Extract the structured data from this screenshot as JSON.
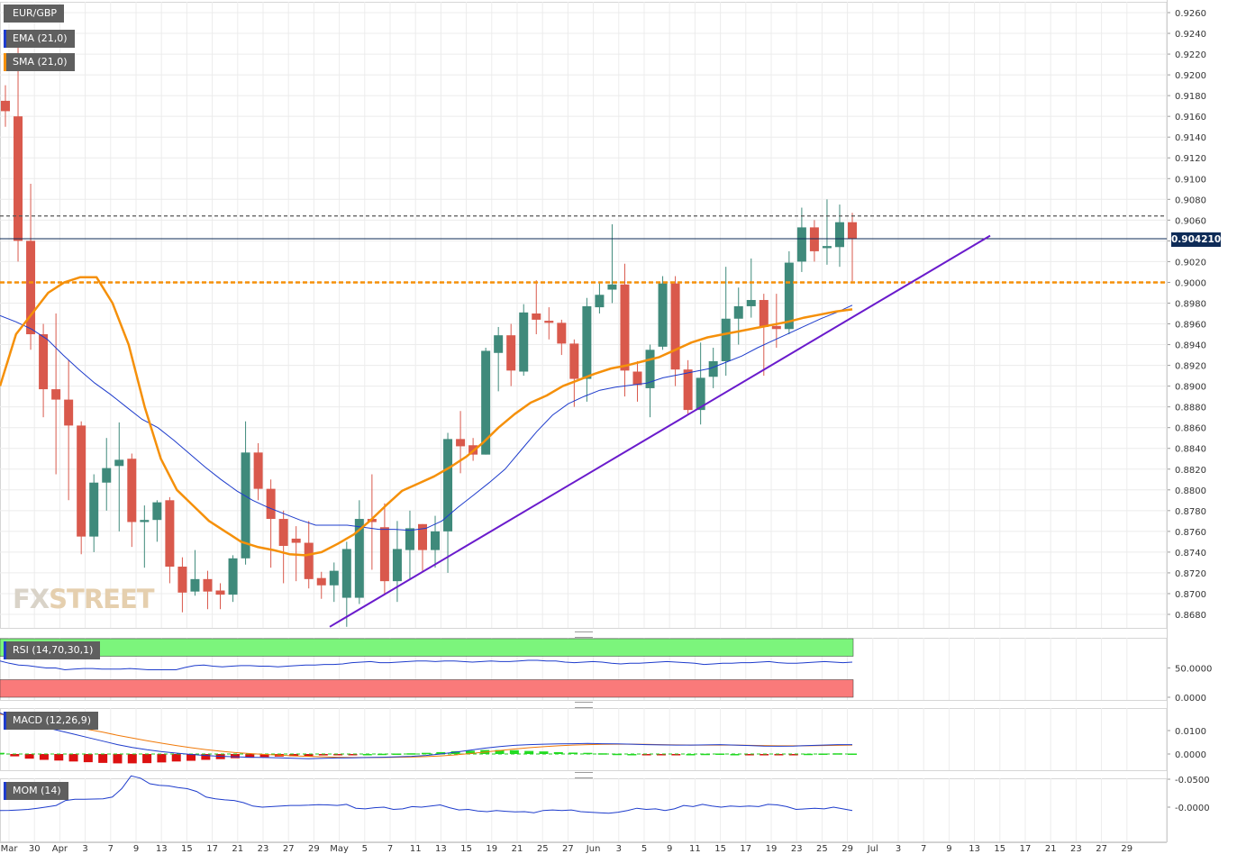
{
  "symbol": "EUR/GBP",
  "indicators": {
    "ema_label": "EMA (21,0)",
    "sma_label": "SMA (21,0)",
    "rsi_label": "RSI (14,70,30,1)",
    "macd_label": "MACD (12,26,9)",
    "mom_label": "MOM (14)"
  },
  "brand": {
    "fx": "FX",
    "street": "STREET"
  },
  "current_price_label": "0.904210",
  "colors": {
    "up": "#3f8a7b",
    "down": "#d9594c",
    "ema": "#1e3ccc",
    "sma": "#f5900a",
    "trendline": "#6a1bcc",
    "support": "#f5900a",
    "resistance": "#555555",
    "rsi_overbought": "#7cf57c",
    "rsi_oversold": "#fa7a7a",
    "macd_pos": "#22dd22",
    "macd_neg": "#dd1111"
  },
  "chart_data": {
    "type": "candlestick",
    "x_tick_labels": [
      "Mar",
      "30",
      "Apr",
      "3",
      "7",
      "9",
      "13",
      "15",
      "17",
      "21",
      "23",
      "27",
      "29",
      "May",
      "5",
      "7",
      "11",
      "13",
      "15",
      "19",
      "21",
      "25",
      "27",
      "Jun",
      "3",
      "5",
      "9",
      "11",
      "15",
      "17",
      "19",
      "23",
      "25",
      "29",
      "Jul",
      "3",
      "7",
      "9",
      "13",
      "15",
      "17",
      "21",
      "23",
      "27",
      "29"
    ],
    "y_tick_labels": [
      "0.9260",
      "0.9240",
      "0.9220",
      "0.9200",
      "0.9180",
      "0.9160",
      "0.9140",
      "0.9120",
      "0.9100",
      "0.9080",
      "0.9060",
      "0.9040",
      "0.9020",
      "0.9000",
      "0.8980",
      "0.8960",
      "0.8940",
      "0.8920",
      "0.8900",
      "0.8880",
      "0.8860",
      "0.8840",
      "0.8820",
      "0.8800",
      "0.8780",
      "0.8760",
      "0.8740",
      "0.8720",
      "0.8700",
      "0.8680"
    ],
    "ylim": [
      0.8665,
      0.927
    ],
    "candles": [
      {
        "o": 0.9175,
        "h": 0.919,
        "l": 0.915,
        "c": 0.9165
      },
      {
        "o": 0.916,
        "h": 0.9235,
        "l": 0.902,
        "c": 0.904
      },
      {
        "o": 0.904,
        "h": 0.9095,
        "l": 0.8935,
        "c": 0.895
      },
      {
        "o": 0.895,
        "h": 0.896,
        "l": 0.887,
        "c": 0.8897
      },
      {
        "o": 0.8897,
        "h": 0.897,
        "l": 0.8815,
        "c": 0.8887
      },
      {
        "o": 0.8887,
        "h": 0.8925,
        "l": 0.879,
        "c": 0.8862
      },
      {
        "o": 0.8862,
        "h": 0.8866,
        "l": 0.8738,
        "c": 0.8755
      },
      {
        "o": 0.8755,
        "h": 0.8815,
        "l": 0.874,
        "c": 0.8807
      },
      {
        "o": 0.8807,
        "h": 0.885,
        "l": 0.878,
        "c": 0.8821
      },
      {
        "o": 0.8823,
        "h": 0.8865,
        "l": 0.876,
        "c": 0.8829
      },
      {
        "o": 0.883,
        "h": 0.8835,
        "l": 0.8745,
        "c": 0.8769
      },
      {
        "o": 0.8769,
        "h": 0.8785,
        "l": 0.8725,
        "c": 0.8771
      },
      {
        "o": 0.8771,
        "h": 0.879,
        "l": 0.875,
        "c": 0.8788
      },
      {
        "o": 0.879,
        "h": 0.8793,
        "l": 0.871,
        "c": 0.8726
      },
      {
        "o": 0.8726,
        "h": 0.8735,
        "l": 0.8682,
        "c": 0.8701
      },
      {
        "o": 0.8702,
        "h": 0.8742,
        "l": 0.8698,
        "c": 0.8714
      },
      {
        "o": 0.8714,
        "h": 0.8722,
        "l": 0.8685,
        "c": 0.8702
      },
      {
        "o": 0.8703,
        "h": 0.871,
        "l": 0.8685,
        "c": 0.8699
      },
      {
        "o": 0.8699,
        "h": 0.8737,
        "l": 0.8692,
        "c": 0.8734
      },
      {
        "o": 0.8734,
        "h": 0.8866,
        "l": 0.8728,
        "c": 0.8836
      },
      {
        "o": 0.8836,
        "h": 0.8845,
        "l": 0.879,
        "c": 0.8801
      },
      {
        "o": 0.8801,
        "h": 0.881,
        "l": 0.8725,
        "c": 0.8772
      },
      {
        "o": 0.8772,
        "h": 0.878,
        "l": 0.871,
        "c": 0.8746
      },
      {
        "o": 0.8753,
        "h": 0.8765,
        "l": 0.8712,
        "c": 0.8749
      },
      {
        "o": 0.8749,
        "h": 0.877,
        "l": 0.8705,
        "c": 0.8714
      },
      {
        "o": 0.8715,
        "h": 0.8721,
        "l": 0.8695,
        "c": 0.8708
      },
      {
        "o": 0.8708,
        "h": 0.873,
        "l": 0.8692,
        "c": 0.8722
      },
      {
        "o": 0.8696,
        "h": 0.875,
        "l": 0.8668,
        "c": 0.8743
      },
      {
        "o": 0.8696,
        "h": 0.879,
        "l": 0.869,
        "c": 0.8772
      },
      {
        "o": 0.8772,
        "h": 0.8815,
        "l": 0.8723,
        "c": 0.8769
      },
      {
        "o": 0.8764,
        "h": 0.8787,
        "l": 0.87,
        "c": 0.8712
      },
      {
        "o": 0.8712,
        "h": 0.877,
        "l": 0.8692,
        "c": 0.8743
      },
      {
        "o": 0.8742,
        "h": 0.878,
        "l": 0.8713,
        "c": 0.8763
      },
      {
        "o": 0.8767,
        "h": 0.8767,
        "l": 0.8722,
        "c": 0.8742
      },
      {
        "o": 0.8742,
        "h": 0.8775,
        "l": 0.8725,
        "c": 0.876
      },
      {
        "o": 0.876,
        "h": 0.8855,
        "l": 0.872,
        "c": 0.8849
      },
      {
        "o": 0.8849,
        "h": 0.8876,
        "l": 0.8816,
        "c": 0.8842
      },
      {
        "o": 0.8843,
        "h": 0.885,
        "l": 0.8828,
        "c": 0.8834
      },
      {
        "o": 0.8834,
        "h": 0.8937,
        "l": 0.8834,
        "c": 0.8934
      },
      {
        "o": 0.8932,
        "h": 0.8957,
        "l": 0.8895,
        "c": 0.8949
      },
      {
        "o": 0.8949,
        "h": 0.896,
        "l": 0.89,
        "c": 0.8915
      },
      {
        "o": 0.8914,
        "h": 0.8979,
        "l": 0.891,
        "c": 0.8971
      },
      {
        "o": 0.897,
        "h": 0.9002,
        "l": 0.895,
        "c": 0.8964
      },
      {
        "o": 0.8963,
        "h": 0.8976,
        "l": 0.8945,
        "c": 0.8961
      },
      {
        "o": 0.8961,
        "h": 0.8964,
        "l": 0.893,
        "c": 0.8941
      },
      {
        "o": 0.8941,
        "h": 0.8945,
        "l": 0.888,
        "c": 0.8907
      },
      {
        "o": 0.8907,
        "h": 0.8985,
        "l": 0.8885,
        "c": 0.8977
      },
      {
        "o": 0.8976,
        "h": 0.9,
        "l": 0.897,
        "c": 0.8988
      },
      {
        "o": 0.8993,
        "h": 0.9056,
        "l": 0.898,
        "c": 0.8998
      },
      {
        "o": 0.8998,
        "h": 0.9018,
        "l": 0.889,
        "c": 0.8915
      },
      {
        "o": 0.8914,
        "h": 0.8924,
        "l": 0.8885,
        "c": 0.8901
      },
      {
        "o": 0.8898,
        "h": 0.894,
        "l": 0.887,
        "c": 0.8935
      },
      {
        "o": 0.8938,
        "h": 0.9006,
        "l": 0.8935,
        "c": 0.8999
      },
      {
        "o": 0.8999,
        "h": 0.9006,
        "l": 0.89,
        "c": 0.8916
      },
      {
        "o": 0.8916,
        "h": 0.8925,
        "l": 0.8873,
        "c": 0.8877
      },
      {
        "o": 0.8877,
        "h": 0.8942,
        "l": 0.8863,
        "c": 0.8908
      },
      {
        "o": 0.8909,
        "h": 0.8937,
        "l": 0.8898,
        "c": 0.8924
      },
      {
        "o": 0.8924,
        "h": 0.9015,
        "l": 0.891,
        "c": 0.8965
      },
      {
        "o": 0.8965,
        "h": 0.8995,
        "l": 0.894,
        "c": 0.8977
      },
      {
        "o": 0.8977,
        "h": 0.9023,
        "l": 0.8966,
        "c": 0.8983
      },
      {
        "o": 0.8983,
        "h": 0.8989,
        "l": 0.891,
        "c": 0.8957
      },
      {
        "o": 0.8958,
        "h": 0.8989,
        "l": 0.8937,
        "c": 0.8955
      },
      {
        "o": 0.8955,
        "h": 0.903,
        "l": 0.895,
        "c": 0.9019
      },
      {
        "o": 0.902,
        "h": 0.9072,
        "l": 0.901,
        "c": 0.9053
      },
      {
        "o": 0.9053,
        "h": 0.906,
        "l": 0.902,
        "c": 0.903
      },
      {
        "o": 0.9033,
        "h": 0.908,
        "l": 0.9017,
        "c": 0.9035
      },
      {
        "o": 0.9034,
        "h": 0.9075,
        "l": 0.9015,
        "c": 0.9058
      },
      {
        "o": 0.9058,
        "h": 0.9067,
        "l": 0.9001,
        "c": 0.9042
      }
    ],
    "ema": [
      0.8968,
      0.8962,
      0.8955,
      0.8945,
      0.893,
      0.8916,
      0.8903,
      0.8892,
      0.888,
      0.8868,
      0.886,
      0.8848,
      0.8835,
      0.8822,
      0.881,
      0.8799,
      0.879,
      0.8783,
      0.8777,
      0.8771,
      0.8766,
      0.8766,
      0.8766,
      0.8764,
      0.8762,
      0.8762,
      0.8761,
      0.8763,
      0.877,
      0.8783,
      0.8795,
      0.8807,
      0.882,
      0.8838,
      0.8856,
      0.8872,
      0.8883,
      0.889,
      0.8896,
      0.8899,
      0.8901,
      0.8903,
      0.8908,
      0.8911,
      0.8914,
      0.8917,
      0.8923,
      0.8929,
      0.8937,
      0.8944,
      0.8951,
      0.8958,
      0.8965,
      0.8971,
      0.8978
    ],
    "sma": [
      0.89,
      0.895,
      0.897,
      0.899,
      0.9,
      0.9005,
      0.9005,
      0.898,
      0.894,
      0.888,
      0.883,
      0.88,
      0.8785,
      0.877,
      0.876,
      0.875,
      0.8745,
      0.8742,
      0.8738,
      0.8737,
      0.874,
      0.8748,
      0.8757,
      0.877,
      0.8785,
      0.8799,
      0.8806,
      0.8813,
      0.8822,
      0.8832,
      0.8845,
      0.886,
      0.8873,
      0.8884,
      0.8891,
      0.89,
      0.8906,
      0.8912,
      0.8917,
      0.892,
      0.8924,
      0.8928,
      0.8935,
      0.8942,
      0.8947,
      0.895,
      0.8953,
      0.8956,
      0.8959,
      0.8962,
      0.8966,
      0.8969,
      0.8972,
      0.8974
    ],
    "levels": {
      "resistance": 0.9064,
      "support": 0.9,
      "current": 0.90421
    },
    "trendline": [
      0.8668,
      0.9045
    ],
    "rsi": {
      "ylim": [
        0,
        100
      ],
      "tick_labels": [
        "50.0000",
        "0.0000"
      ],
      "values": [
        62,
        58,
        55,
        54,
        52,
        50,
        50,
        47,
        48,
        49,
        49,
        48,
        48,
        48,
        49,
        48,
        47,
        47,
        47,
        47,
        51,
        54,
        55,
        53,
        52,
        53,
        54,
        54,
        53,
        53,
        52,
        53,
        54,
        55,
        55,
        56,
        56,
        57,
        59,
        60,
        61,
        59,
        59,
        60,
        61,
        62,
        62,
        61,
        62,
        62,
        61,
        60,
        61,
        62,
        61,
        61,
        62,
        63,
        63,
        62,
        62,
        60,
        59,
        60,
        61,
        60,
        58,
        57,
        58,
        58,
        59,
        60,
        61,
        60,
        59,
        58,
        56,
        57,
        58,
        58,
        59,
        59,
        60,
        61,
        59,
        58,
        58,
        59,
        60,
        61,
        60,
        59,
        60
      ]
    },
    "macd": {
      "tick_labels": [
        "0.0100",
        "0.0000"
      ],
      "ylim": [
        -0.008,
        0.018
      ],
      "macd_line": [
        0.0175,
        0.015,
        0.013,
        0.0115,
        0.01,
        0.0085,
        0.007,
        0.0055,
        0.004,
        0.0028,
        0.0018,
        0.001,
        0.0004,
        -0.0002,
        -0.0006,
        -0.001,
        -0.0012,
        -0.0014,
        -0.0015,
        -0.0016,
        -0.0018,
        -0.002,
        -0.0018,
        -0.0017,
        -0.0016,
        -0.0015,
        -0.0014,
        -0.0012,
        -0.001,
        -0.0006,
        0.0,
        0.0008,
        0.0016,
        0.0025,
        0.0032,
        0.0037,
        0.004,
        0.0042,
        0.0043,
        0.0044,
        0.0045,
        0.0044,
        0.0043,
        0.0042,
        0.004,
        0.0039,
        0.0038,
        0.0038,
        0.0039,
        0.004,
        0.0038,
        0.0036,
        0.0034,
        0.0033,
        0.0034,
        0.0036,
        0.0038,
        0.004,
        0.004
      ],
      "signal_line": [
        0.017,
        0.016,
        0.015,
        0.014,
        0.0128,
        0.0117,
        0.0105,
        0.0093,
        0.008,
        0.0068,
        0.0057,
        0.0046,
        0.0036,
        0.0027,
        0.0019,
        0.0012,
        0.0006,
        0.0002,
        -0.0002,
        -0.0005,
        -0.0008,
        -0.001,
        -0.0012,
        -0.0014,
        -0.0015,
        -0.0015,
        -0.0015,
        -0.0014,
        -0.0013,
        -0.0011,
        -0.0008,
        -0.0004,
        0.0002,
        0.0008,
        0.0015,
        0.0021,
        0.0027,
        0.0031,
        0.0035,
        0.0038,
        0.004,
        0.0041,
        0.0042,
        0.0042,
        0.0041,
        0.004,
        0.0039,
        0.0038,
        0.0038,
        0.0038,
        0.0038,
        0.0037,
        0.0036,
        0.0035,
        0.0035,
        0.0035,
        0.0036,
        0.0037,
        0.0038
      ],
      "histogram": [
        0.0005,
        -0.001,
        -0.002,
        -0.0025,
        -0.0028,
        -0.0032,
        -0.0035,
        -0.0038,
        -0.004,
        -0.004,
        -0.0039,
        -0.0036,
        -0.0032,
        -0.0029,
        -0.0025,
        -0.0022,
        -0.0018,
        -0.0016,
        -0.0013,
        -0.0011,
        -0.001,
        -0.001,
        -0.0006,
        -0.0003,
        -0.0001,
        0.0,
        0.0001,
        0.0002,
        0.0003,
        0.0005,
        0.0008,
        0.0012,
        0.0014,
        0.0017,
        0.0017,
        0.0016,
        0.0013,
        0.0011,
        0.0008,
        0.0006,
        0.0005,
        0.0003,
        0.0001,
        0.0,
        -0.0001,
        -0.0001,
        -0.0001,
        0.0,
        0.0001,
        0.0002,
        0.0,
        -0.0001,
        -0.0002,
        -0.0002,
        -0.0001,
        0.0001,
        0.0002,
        0.0003,
        0.0002
      ]
    },
    "mom": {
      "tick_labels": [
        "-0.0000",
        "-0.0500"
      ],
      "ylim": [
        -0.055,
        0.012
      ],
      "values": [
        0.006,
        0.0058,
        0.005,
        0.004,
        0.002,
        -0.0005,
        -0.003,
        -0.012,
        -0.014,
        -0.014,
        -0.0145,
        -0.015,
        -0.018,
        -0.033,
        -0.056,
        -0.052,
        -0.042,
        -0.039,
        -0.038,
        -0.035,
        -0.033,
        -0.028,
        -0.018,
        -0.015,
        -0.013,
        -0.012,
        -0.008,
        -0.002,
        0.0,
        -0.001,
        -0.002,
        -0.003,
        -0.003,
        -0.0035,
        -0.0045,
        -0.004,
        -0.003,
        -0.005,
        0.002,
        0.003,
        0.001,
        0.0,
        0.004,
        0.003,
        -0.001,
        0.0,
        -0.002,
        -0.004,
        0.001,
        0.005,
        0.004,
        0.007,
        0.008,
        0.006,
        0.0075,
        0.0085,
        0.008,
        0.01,
        0.006,
        0.005,
        0.006,
        0.005,
        0.008,
        0.009,
        0.01,
        0.011,
        0.009,
        0.006,
        0.002,
        0.004,
        0.003,
        0.006,
        0.003,
        -0.003,
        -0.001,
        -0.005,
        -0.002,
        0.0,
        -0.002,
        -0.001,
        -0.002,
        -0.001,
        -0.005,
        -0.004,
        -0.001,
        0.004,
        0.003,
        0.002,
        0.003,
        0.0,
        0.003,
        0.006
      ]
    }
  }
}
